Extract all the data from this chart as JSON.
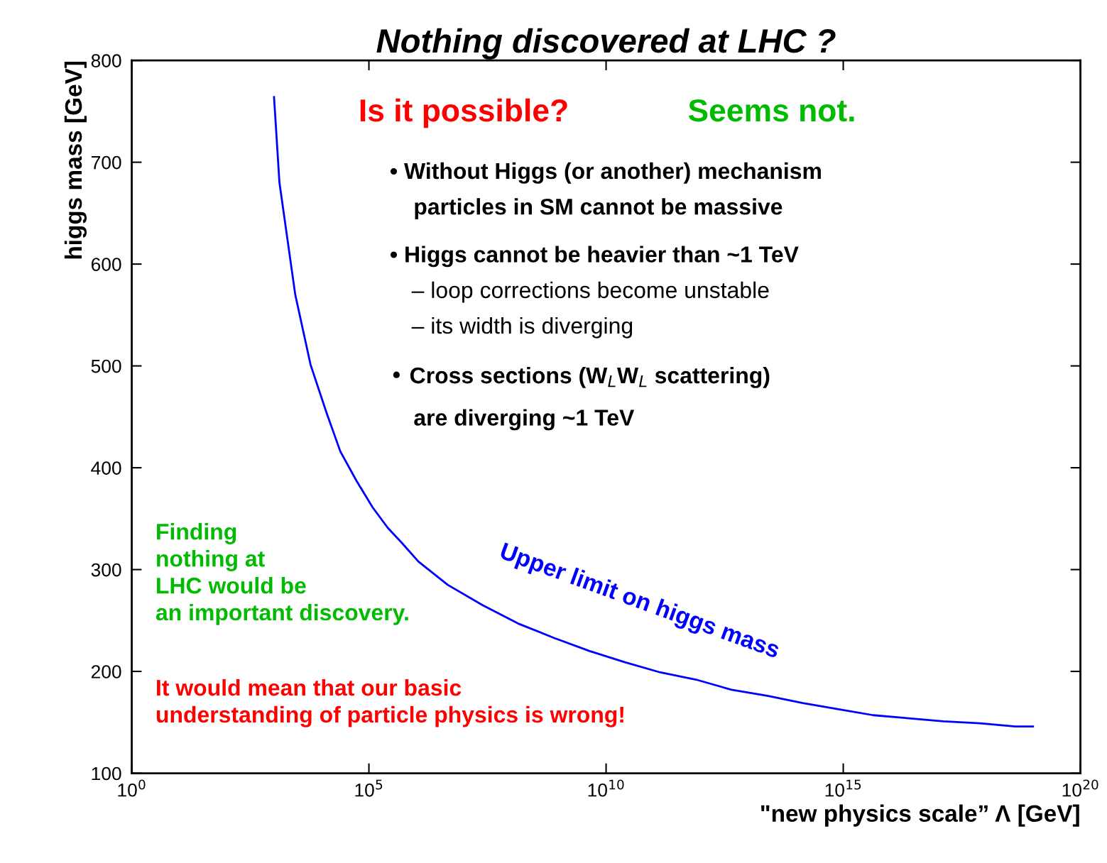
{
  "chart_data": {
    "type": "line",
    "title": "Nothing discovered at LHC ?",
    "xlabel": "\"new physics scale” Λ [GeV]",
    "ylabel": "higgs mass [GeV]",
    "log": "x",
    "grid": false,
    "legend": false,
    "marker": "none",
    "line_style": "solid",
    "xlim": [
      1,
      1e+20
    ],
    "ylim": [
      100,
      800
    ],
    "xticks": [
      {
        "value": 1,
        "label": "10$^{0}$"
      },
      {
        "value": 100000.0,
        "label": "10$^{5}$"
      },
      {
        "value": 10000000000.0,
        "label": "10$^{10}$"
      },
      {
        "value": 1000000000000000.0,
        "label": "10$^{15}$"
      },
      {
        "value": 1e+20,
        "label": "10$^{20}$"
      }
    ],
    "yticks": [
      100,
      200,
      300,
      400,
      500,
      600,
      700,
      800
    ],
    "series": [
      {
        "color": "#0000ff",
        "x": [
          1000.0,
          1300.0,
          2800.0,
          5900.0,
          13000.0,
          25000.0,
          55000.0,
          120000.0,
          250000.0,
          500000.0,
          1100000.0,
          4600000.0,
          25000000.0,
          140000000.0,
          790000000.0,
          4500000000.0,
          25000000000.0,
          140000000000.0,
          780000000000.0,
          4400000000000.0,
          25000000000000.0,
          140000000000000.0,
          760000000000000.0,
          4300000000000000.0,
          2.4e+16,
          1.3e+17,
          7.6e+17,
          4.2e+18,
          1e+19
        ],
        "values": [
          764,
          680,
          570,
          501,
          453,
          416,
          387,
          361,
          341,
          326,
          308,
          285,
          265,
          247,
          233,
          220,
          209,
          199,
          192,
          182,
          176,
          169,
          163,
          157,
          154,
          151,
          149,
          146,
          146
        ]
      }
    ],
    "annotations": [
      "Is it possible?",
      "Seems not.",
      "• Without Higgs (or another) mechanism",
      "particles in SM cannot be massive",
      "• Higgs cannot be heavier than ~1 TeV",
      "– loop corrections become unstable",
      "– its width is diverging",
      "• Cross sections (W$_{L}$W$_{L}$ scattering)",
      "are diverging ~1 TeV",
      "Finding\nnothing at\nLHC would be\nan important discovery.",
      "It would mean that our basic\nunderstanding of particle physics is wrong!",
      "Upper limit on higgs mass"
    ]
  }
}
